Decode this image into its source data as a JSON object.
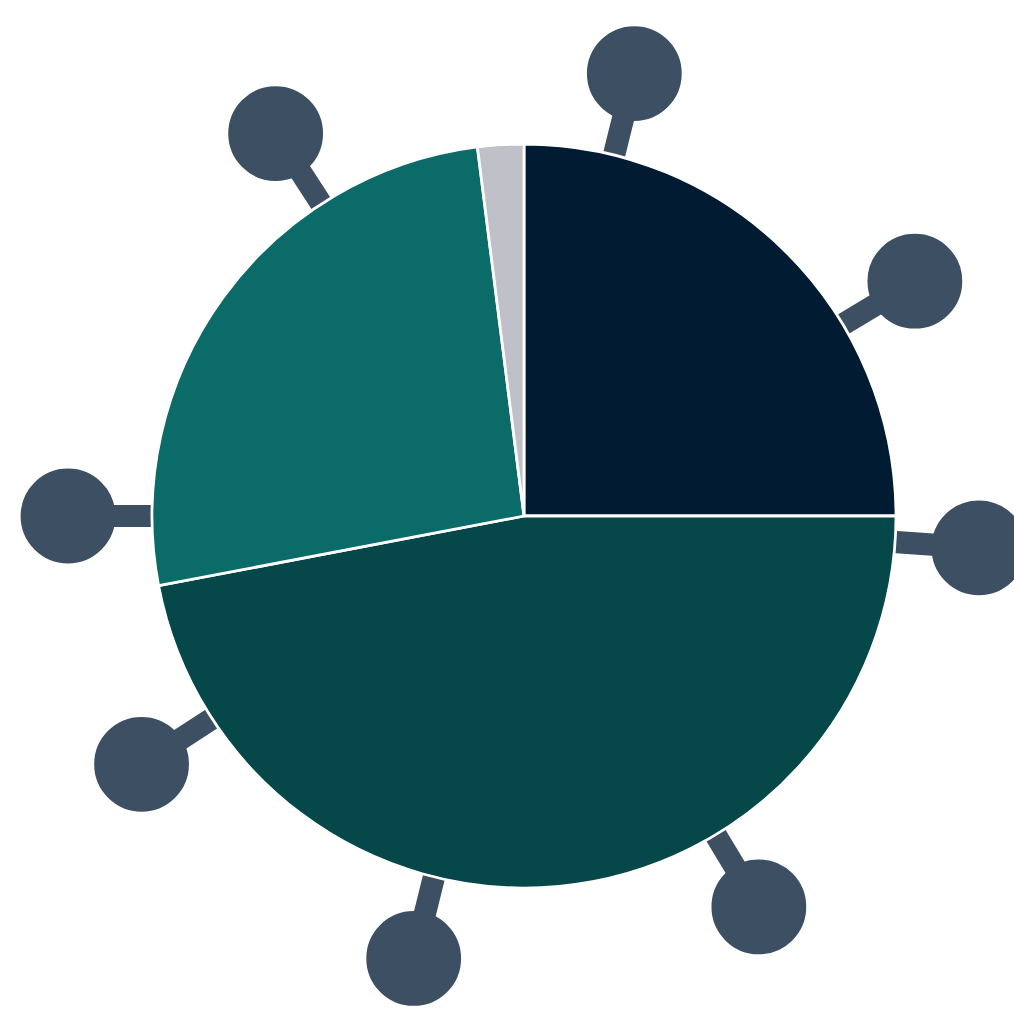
{
  "chart_data": {
    "type": "pie",
    "categories": [
      null,
      null,
      null,
      null
    ],
    "values": [
      25,
      47,
      26,
      2
    ],
    "colors": [
      "#011c32",
      "#06474a",
      "#0a6b68",
      "#c0c0c8"
    ]
  }
}
